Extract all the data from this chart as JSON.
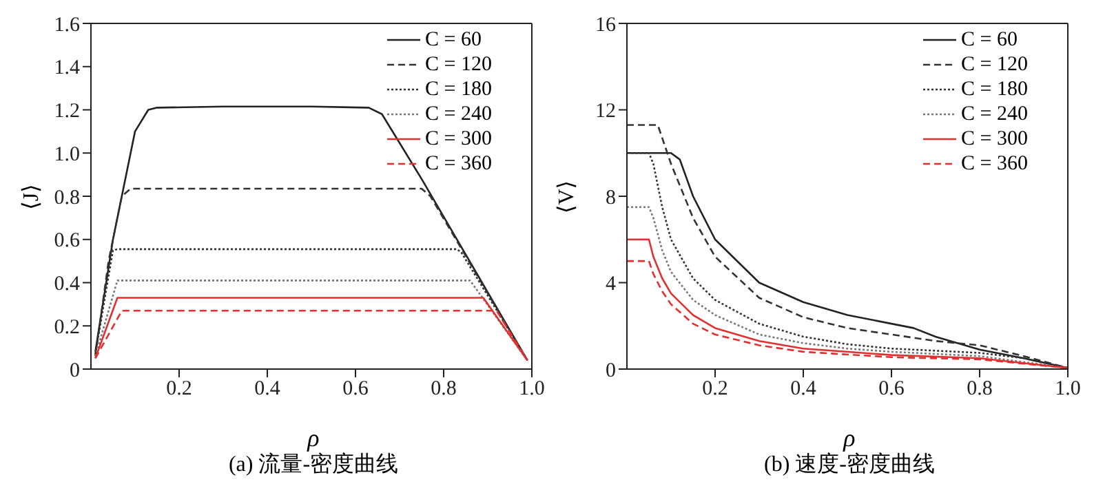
{
  "chart_data": [
    {
      "type": "line",
      "title": "(a) 流量-密度曲线",
      "xlabel": "ρ",
      "ylabel": "⟨J⟩",
      "xlim": [
        0,
        1
      ],
      "xticks": [
        0.2,
        0.4,
        0.6,
        0.8,
        {
          "value": 1,
          "label": "1.0"
        }
      ],
      "ylim": [
        0,
        1.6
      ],
      "yticks": [
        0,
        0.2,
        0.4,
        0.6,
        0.8,
        {
          "value": 1,
          "label": "1.0"
        },
        1.2,
        1.4,
        1.6
      ],
      "legend": "top right",
      "series": [
        {
          "name": "C = 60",
          "color": "#222222",
          "line_style": "solid",
          "x": [
            0.01,
            0.05,
            0.1,
            0.13,
            0.15,
            0.3,
            0.5,
            0.63,
            0.66,
            0.75,
            0.85,
            0.99
          ],
          "values": [
            0.08,
            0.6,
            1.1,
            1.2,
            1.21,
            1.215,
            1.215,
            1.21,
            1.18,
            0.88,
            0.53,
            0.04
          ]
        },
        {
          "name": "C = 120",
          "color": "#333333",
          "line_style": "dashed",
          "x": [
            0.01,
            0.04,
            0.07,
            0.09,
            0.75,
            0.77,
            0.99
          ],
          "values": [
            0.06,
            0.5,
            0.8,
            0.835,
            0.835,
            0.8,
            0.04
          ]
        },
        {
          "name": "C = 180",
          "color": "#333333",
          "line_style": "dotted",
          "x": [
            0.01,
            0.05,
            0.06,
            0.83,
            0.84,
            0.99
          ],
          "values": [
            0.07,
            0.55,
            0.555,
            0.555,
            0.54,
            0.04
          ]
        },
        {
          "name": "C = 240",
          "color": "#777777",
          "line_style": "dotted",
          "x": [
            0.01,
            0.06,
            0.86,
            0.99
          ],
          "values": [
            0.06,
            0.41,
            0.41,
            0.04
          ]
        },
        {
          "name": "C = 300",
          "color": "#e03030",
          "line_style": "solid",
          "x": [
            0.01,
            0.06,
            0.89,
            0.99
          ],
          "values": [
            0.05,
            0.33,
            0.33,
            0.04
          ]
        },
        {
          "name": "C = 360",
          "color": "#e03030",
          "line_style": "dashed",
          "x": [
            0.01,
            0.07,
            0.92,
            0.99
          ],
          "values": [
            0.05,
            0.27,
            0.27,
            0.04
          ]
        }
      ]
    },
    {
      "type": "line",
      "title": "(b) 速度-密度曲线",
      "xlabel": "ρ",
      "ylabel": "⟨V⟩",
      "xlim": [
        0,
        1
      ],
      "xticks": [
        0.2,
        0.4,
        0.6,
        0.8,
        {
          "value": 1,
          "label": "1.0"
        }
      ],
      "ylim": [
        0,
        16
      ],
      "yticks": [
        0,
        4,
        8,
        12,
        16
      ],
      "legend": "top right",
      "series": [
        {
          "name": "C = 60",
          "color": "#222222",
          "line_style": "solid",
          "x": [
            0,
            0.1,
            0.12,
            0.15,
            0.2,
            0.3,
            0.4,
            0.5,
            0.6,
            0.65,
            0.7,
            0.8,
            0.9,
            1.0
          ],
          "values": [
            10,
            10,
            9.7,
            8,
            6,
            4,
            3.1,
            2.5,
            2.1,
            1.9,
            1.5,
            0.9,
            0.5,
            0.05
          ]
        },
        {
          "name": "C = 120",
          "color": "#333333",
          "line_style": "dashed",
          "x": [
            0,
            0.07,
            0.1,
            0.15,
            0.2,
            0.3,
            0.4,
            0.5,
            0.6,
            0.7,
            0.8,
            0.9,
            1.0
          ],
          "values": [
            11.3,
            11.3,
            9.5,
            7,
            5.2,
            3.3,
            2.4,
            1.9,
            1.6,
            1.3,
            1.1,
            0.6,
            0.05
          ]
        },
        {
          "name": "C = 180",
          "color": "#333333",
          "line_style": "dotted",
          "x": [
            0.01,
            0.05,
            0.06,
            0.08,
            0.1,
            0.15,
            0.2,
            0.3,
            0.4,
            0.5,
            0.6,
            0.8,
            0.9,
            1.0
          ],
          "values": [
            10,
            10,
            9.5,
            7.5,
            6,
            4.2,
            3.2,
            2.1,
            1.5,
            1.15,
            0.95,
            0.75,
            0.5,
            0.05
          ]
        },
        {
          "name": "C = 240",
          "color": "#777777",
          "line_style": "dotted",
          "x": [
            0,
            0.05,
            0.06,
            0.08,
            0.1,
            0.15,
            0.2,
            0.3,
            0.4,
            0.5,
            0.6,
            0.8,
            1.0
          ],
          "values": [
            7.5,
            7.5,
            7,
            5.5,
            4.5,
            3.2,
            2.5,
            1.6,
            1.2,
            0.95,
            0.8,
            0.6,
            0.05
          ]
        },
        {
          "name": "C = 300",
          "color": "#e03030",
          "line_style": "solid",
          "x": [
            0,
            0.05,
            0.06,
            0.08,
            0.1,
            0.15,
            0.2,
            0.3,
            0.4,
            0.6,
            0.8,
            1.0
          ],
          "values": [
            6,
            6,
            5.2,
            4.2,
            3.5,
            2.5,
            1.9,
            1.3,
            0.95,
            0.65,
            0.5,
            0.05
          ]
        },
        {
          "name": "C = 360",
          "color": "#e03030",
          "line_style": "dashed",
          "x": [
            0,
            0.05,
            0.06,
            0.08,
            0.1,
            0.15,
            0.2,
            0.3,
            0.4,
            0.6,
            0.8,
            1.0
          ],
          "values": [
            5,
            5,
            4.4,
            3.6,
            3,
            2.1,
            1.6,
            1.1,
            0.8,
            0.55,
            0.45,
            0.05
          ]
        }
      ]
    }
  ]
}
